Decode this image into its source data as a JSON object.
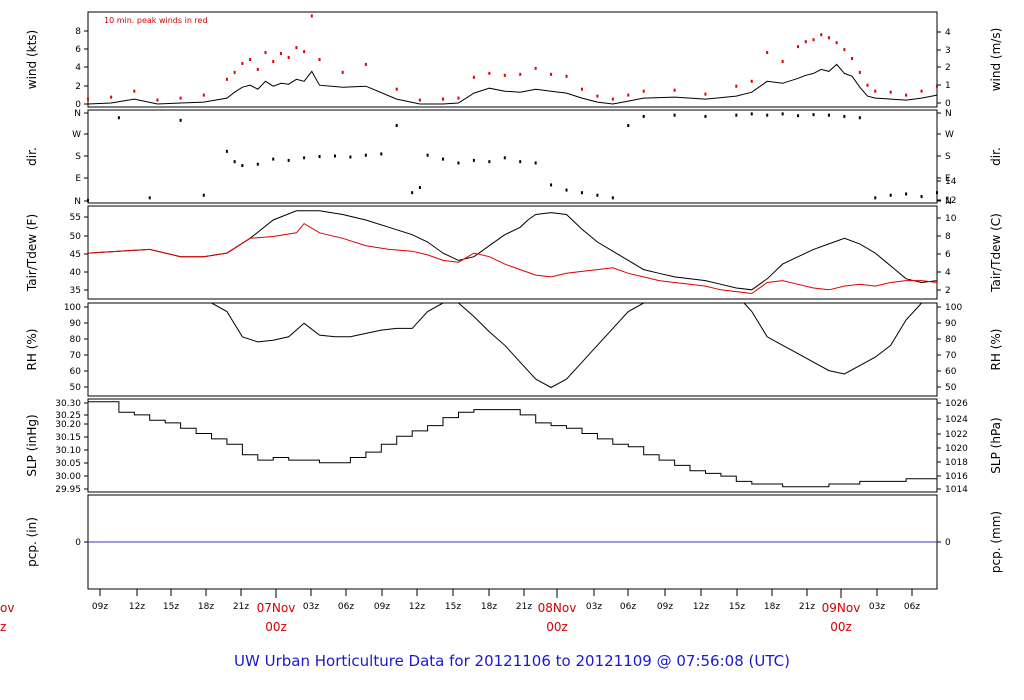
{
  "chart_data": {
    "type": "line",
    "title": "UW Urban Horticulture Data for 20121106  to  20121109 @ 07:56:08  (UTC)",
    "annotation": "10 min. peak winds in red",
    "x_axis": {
      "hour_ticks": [
        "09z",
        "12z",
        "15z",
        "18z",
        "21z",
        "03z",
        "06z",
        "09z",
        "12z",
        "15z",
        "18z",
        "21z",
        "03z",
        "06z",
        "09z",
        "12z",
        "15z",
        "18z",
        "21z",
        "03z",
        "06z"
      ],
      "date_labels": [
        {
          "date": "07Nov",
          "time": "00z"
        },
        {
          "date": "08Nov",
          "time": "00z"
        },
        {
          "date": "09Nov",
          "time": "00z"
        }
      ],
      "left_cut_labels": {
        "date": "ov",
        "time": "z"
      }
    },
    "panels": [
      {
        "id": "wind",
        "ylabel_left": "wind (kts)",
        "ylabel_right": "wind (m/s)",
        "left_ticks": [
          "0",
          "2",
          "4",
          "6",
          "8"
        ],
        "right_ticks": [
          "0",
          "1",
          "2",
          "3",
          "4"
        ],
        "ylim": [
          0,
          9.6
        ],
        "series": [
          {
            "name": "wind",
            "color": "#000000",
            "x": [
              0,
              3,
              6,
              9,
              12,
              15,
              18,
              19,
              20,
              21,
              22,
              23,
              24,
              25,
              26,
              27,
              28,
              29,
              30,
              33,
              36,
              40,
              43,
              46,
              48,
              50,
              52,
              54,
              56,
              58,
              60,
              62,
              64,
              66,
              68,
              70,
              72,
              76,
              80,
              84,
              86,
              88,
              90,
              92,
              93,
              94,
              95,
              96,
              97,
              98,
              99,
              100,
              101,
              102,
              104,
              106,
              108,
              110
            ],
            "values": [
              0.3,
              0.4,
              0.8,
              0.3,
              0.4,
              0.5,
              0.9,
              1.5,
              2.0,
              2.2,
              1.8,
              2.6,
              2.1,
              2.4,
              2.3,
              2.8,
              2.6,
              3.6,
              2.2,
              2.0,
              2.1,
              0.8,
              0.3,
              0.3,
              0.4,
              1.4,
              1.9,
              1.6,
              1.5,
              1.8,
              1.6,
              1.4,
              0.9,
              0.5,
              0.3,
              0.6,
              0.9,
              1.0,
              0.8,
              1.1,
              1.5,
              2.6,
              2.4,
              2.9,
              3.2,
              3.4,
              3.8,
              3.6,
              4.3,
              3.4,
              3.1,
              2.0,
              1.1,
              0.9,
              0.8,
              0.7,
              0.9,
              1.2
            ]
          },
          {
            "name": "peak",
            "color": "#dd0000",
            "x": [
              0,
              3,
              6,
              9,
              12,
              15,
              18,
              19,
              20,
              21,
              22,
              23,
              24,
              25,
              26,
              27,
              28,
              29,
              30,
              33,
              36,
              40,
              43,
              46,
              48,
              50,
              52,
              54,
              56,
              58,
              60,
              62,
              64,
              66,
              68,
              70,
              72,
              76,
              80,
              84,
              86,
              88,
              90,
              92,
              93,
              94,
              95,
              96,
              97,
              98,
              99,
              100,
              101,
              102,
              104,
              106,
              108,
              110
            ],
            "values": [
              0.8,
              1.0,
              1.6,
              0.7,
              0.9,
              1.2,
              2.8,
              3.5,
              4.4,
              4.8,
              3.8,
              5.5,
              4.6,
              5.4,
              5.0,
              6.0,
              5.6,
              9.2,
              4.8,
              3.5,
              4.3,
              1.8,
              0.7,
              0.8,
              0.9,
              3.0,
              3.4,
              3.2,
              3.3,
              3.9,
              3.3,
              3.1,
              1.8,
              1.1,
              0.8,
              1.2,
              1.6,
              1.7,
              1.3,
              2.1,
              2.6,
              5.5,
              4.6,
              6.1,
              6.6,
              6.8,
              7.3,
              7.0,
              6.5,
              5.8,
              4.9,
              3.5,
              2.2,
              1.6,
              1.5,
              1.2,
              1.6,
              2.1
            ]
          }
        ]
      },
      {
        "id": "dir",
        "ylabel_left": "dir.",
        "ylabel_right": "dir.",
        "left_ticks": [
          "N",
          "E",
          "S",
          "W",
          "N"
        ],
        "right_ticks": [
          "N",
          "E",
          "S",
          "W",
          "N"
        ],
        "ylim": [
          0,
          360
        ],
        "series": [
          {
            "name": "direction",
            "color": "#000000",
            "x": [
              0,
              4,
              8,
              12,
              15,
              18,
              19,
              20,
              22,
              24,
              26,
              28,
              30,
              32,
              34,
              36,
              38,
              40,
              42,
              43,
              44,
              46,
              48,
              50,
              52,
              54,
              56,
              58,
              60,
              62,
              64,
              66,
              68,
              70,
              72,
              76,
              80,
              84,
              86,
              88,
              90,
              92,
              94,
              96,
              98,
              100,
              102,
              104,
              106,
              108,
              110
            ],
            "values": [
              10,
              330,
              20,
              320,
              30,
              200,
              160,
              145,
              150,
              170,
              165,
              175,
              180,
              182,
              178,
              185,
              190,
              300,
              40,
              60,
              185,
              170,
              155,
              165,
              160,
              175,
              160,
              155,
              70,
              50,
              40,
              30,
              20,
              300,
              335,
              340,
              335,
              340,
              345,
              340,
              345,
              338,
              342,
              340,
              335,
              330,
              20,
              30,
              35,
              25,
              40
            ]
          }
        ]
      },
      {
        "id": "temp",
        "ylabel_left": "Tair/Tdew (F)",
        "ylabel_right": "Tair/Tdew (C)",
        "left_ticks": [
          "35",
          "40",
          "45",
          "50",
          "55"
        ],
        "right_ticks": [
          "2",
          "4",
          "6",
          "8",
          "10",
          "12",
          "14"
        ],
        "ylim": [
          32.5,
          57.8
        ],
        "series": [
          {
            "name": "Tair",
            "color": "#000000",
            "x": [
              0,
              4,
              8,
              12,
              15,
              18,
              21,
              24,
              27,
              30,
              33,
              36,
              39,
              42,
              44,
              46,
              48,
              50,
              52,
              54,
              56,
              57,
              58,
              60,
              62,
              64,
              66,
              68,
              70,
              72,
              74,
              76,
              78,
              80,
              82,
              84,
              86,
              88,
              90,
              92,
              94,
              96,
              98,
              100,
              102,
              104,
              106,
              108,
              110
            ],
            "values": [
              45,
              45.5,
              46,
              44,
              44,
              45,
              49,
              54,
              56.5,
              56.5,
              55.5,
              54,
              52,
              50,
              48,
              45,
              43,
              44,
              47,
              50,
              52,
              54,
              55.5,
              56,
              55.5,
              51.5,
              48,
              45.5,
              43,
              40.5,
              39.5,
              38.5,
              38,
              37.5,
              36.5,
              35.5,
              35,
              38,
              42,
              44,
              46,
              47.5,
              49,
              47.5,
              45,
              41.5,
              38,
              37,
              37.5
            ]
          },
          {
            "name": "Tdew",
            "color": "#dd0000",
            "x": [
              0,
              4,
              8,
              12,
              15,
              18,
              21,
              24,
              27,
              28,
              30,
              33,
              36,
              39,
              42,
              44,
              46,
              48,
              50,
              52,
              54,
              56,
              58,
              60,
              62,
              64,
              66,
              68,
              70,
              72,
              74,
              76,
              78,
              80,
              82,
              84,
              86,
              88,
              90,
              92,
              94,
              96,
              98,
              100,
              102,
              104,
              106,
              108,
              110
            ],
            "values": [
              45,
              45.5,
              46,
              44,
              44,
              45,
              49,
              49.5,
              50.5,
              53,
              50.5,
              49,
              47,
              46,
              45.5,
              44.5,
              43,
              42.5,
              45,
              44,
              42,
              40.5,
              39,
              38.5,
              39.5,
              40,
              40.5,
              41,
              39.5,
              38.5,
              37.5,
              37,
              36.5,
              36,
              35,
              34.5,
              34,
              37,
              37.5,
              36.5,
              35.5,
              35,
              36,
              36.5,
              36,
              37,
              37.5,
              37.5,
              37
            ]
          }
        ]
      },
      {
        "id": "rh",
        "ylabel_left": "RH (%)",
        "ylabel_right": "RH (%)",
        "left_ticks": [
          "50",
          "60",
          "70",
          "80",
          "90",
          "100"
        ],
        "right_ticks": [
          "50",
          "60",
          "70",
          "80",
          "90",
          "100"
        ],
        "ylim": [
          45,
          100
        ],
        "series": [
          {
            "name": "RH",
            "color": "#000000",
            "x": [
              0,
              4,
              8,
              12,
              15,
              16,
              18,
              20,
              22,
              24,
              26,
              28,
              30,
              32,
              34,
              36,
              38,
              40,
              42,
              44,
              46,
              48,
              50,
              52,
              54,
              56,
              58,
              60,
              62,
              64,
              66,
              68,
              70,
              72,
              74,
              76,
              78,
              80,
              82,
              84,
              85,
              86,
              88,
              90,
              92,
              94,
              96,
              98,
              100,
              102,
              104,
              106,
              108,
              110
            ],
            "values": [
              100,
              100,
              100,
              100,
              100,
              100,
              95,
              80,
              77,
              78,
              80,
              88,
              81,
              80,
              80,
              82,
              84,
              85,
              85,
              95,
              100,
              100,
              92,
              83,
              75,
              65,
              55,
              50,
              55,
              65,
              75,
              85,
              95,
              100,
              100,
              100,
              100,
              100,
              100,
              100,
              100,
              95,
              80,
              75,
              70,
              65,
              60,
              58,
              63,
              68,
              75,
              90,
              100,
              100
            ]
          }
        ]
      },
      {
        "id": "slp",
        "ylabel_left": "SLP (inHg)",
        "ylabel_right": "SLP (hPa)",
        "left_ticks": [
          "29.95",
          "30.00",
          "30.05",
          "30.10",
          "30.15",
          "30.20",
          "30.25",
          "30.30"
        ],
        "right_ticks": [
          "1014",
          "1016",
          "1018",
          "1020",
          "1022",
          "1024",
          "1026"
        ],
        "ylim": [
          29.95,
          30.3
        ],
        "series": [
          {
            "name": "SLP",
            "color": "#000000",
            "x": [
              0,
              2,
              4,
              6,
              8,
              10,
              12,
              14,
              16,
              18,
              20,
              22,
              24,
              26,
              28,
              30,
              32,
              34,
              36,
              38,
              40,
              42,
              44,
              46,
              48,
              50,
              52,
              54,
              56,
              58,
              60,
              62,
              64,
              66,
              68,
              70,
              72,
              74,
              76,
              78,
              80,
              82,
              84,
              86,
              88,
              90,
              92,
              94,
              96,
              98,
              100,
              102,
              104,
              106,
              108,
              110
            ],
            "values": [
              30.29,
              30.29,
              30.25,
              30.24,
              30.22,
              30.21,
              30.19,
              30.17,
              30.15,
              30.13,
              30.09,
              30.07,
              30.08,
              30.07,
              30.07,
              30.06,
              30.06,
              30.08,
              30.1,
              30.13,
              30.16,
              30.18,
              30.2,
              30.23,
              30.25,
              30.26,
              30.26,
              30.26,
              30.24,
              30.21,
              30.2,
              30.19,
              30.17,
              30.15,
              30.13,
              30.12,
              30.09,
              30.07,
              30.05,
              30.03,
              30.02,
              30.01,
              29.99,
              29.98,
              29.98,
              29.97,
              29.97,
              29.97,
              29.98,
              29.98,
              29.99,
              29.99,
              29.99,
              30.0,
              30.0,
              30.0
            ]
          }
        ]
      },
      {
        "id": "pcp",
        "ylabel_left": "pcp. (in)",
        "ylabel_right": "pcp. (mm)",
        "left_ticks": [
          "0"
        ],
        "right_ticks": [
          "0"
        ],
        "ylim": [
          -1,
          1
        ],
        "series": [
          {
            "name": "pcp",
            "color": "#3333cc",
            "x": [
              0,
              110
            ],
            "values": [
              0,
              0
            ]
          }
        ]
      }
    ]
  }
}
